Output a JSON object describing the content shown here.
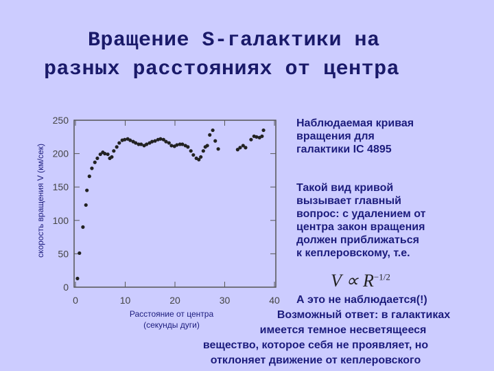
{
  "slide_title": [
    "Вращение S-галактики на",
    "разных расстояниях от центра"
  ],
  "chart_data": {
    "type": "scatter",
    "y_label": "скорость вращения  V (км/сек)",
    "x_label": [
      "Расстояние от центра",
      "(секунды дуги)"
    ],
    "color": "#222222",
    "x": [
      0.4,
      0.8,
      1.5,
      2.1,
      2.3,
      2.8,
      3.3,
      3.9,
      4.4,
      5.0,
      5.5,
      5.9,
      6.5,
      6.9,
      7.3,
      7.7,
      8.3,
      8.8,
      9.4,
      9.9,
      10.5,
      11.0,
      11.6,
      12.1,
      12.7,
      13.2,
      13.8,
      14.3,
      14.9,
      15.4,
      16.0,
      16.6,
      17.1,
      17.7,
      18.2,
      18.8,
      19.3,
      19.9,
      20.4,
      21.0,
      21.5,
      22.1,
      22.6,
      23.2,
      23.7,
      24.3,
      24.8,
      25.2,
      25.7,
      26.1,
      26.5,
      27.0,
      27.6,
      28.1,
      28.7,
      32.6,
      33.1,
      33.7,
      34.2,
      35.3,
      35.9,
      36.4,
      37.0,
      37.5,
      37.8
    ],
    "values": [
      13,
      51,
      90,
      123,
      145,
      166,
      178,
      187,
      193,
      199,
      202,
      200,
      199,
      193,
      195,
      204,
      210,
      216,
      220,
      221,
      222,
      220,
      218,
      216,
      214,
      214,
      212,
      214,
      216,
      218,
      219,
      221,
      222,
      221,
      218,
      216,
      212,
      211,
      213,
      214,
      214,
      212,
      210,
      204,
      198,
      193,
      191,
      195,
      204,
      210,
      212,
      228,
      235,
      219,
      207,
      206,
      209,
      212,
      209,
      221,
      226,
      225,
      224,
      226,
      235
    ],
    "xlim": [
      0,
      40
    ],
    "xticks": [
      0,
      10,
      20,
      30,
      40
    ],
    "ylim": [
      0,
      250
    ],
    "yticks": [
      0,
      50,
      100,
      150,
      200,
      250
    ],
    "grid": false
  },
  "observed_note": [
    "Наблюдаемая кривая",
    "вращения для",
    "галактики IC 4895"
  ],
  "question_note": [
    "Такой вид кривой",
    "вызывает главный",
    "вопрос: с удалением от",
    "центра закон вращения",
    "должен приближаться",
    "к кеплеровскому, т.е."
  ],
  "formula": {
    "main": "V ∝ R",
    "exponent": "−1/2"
  },
  "answer_note": [
    "А это не наблюдается(!)",
    "Возможный ответ: в галактиках",
    "имеется темное несветящееся",
    "вещество, которое себя не проявляет, но",
    "отклоняет  движение от кеплеровского"
  ]
}
